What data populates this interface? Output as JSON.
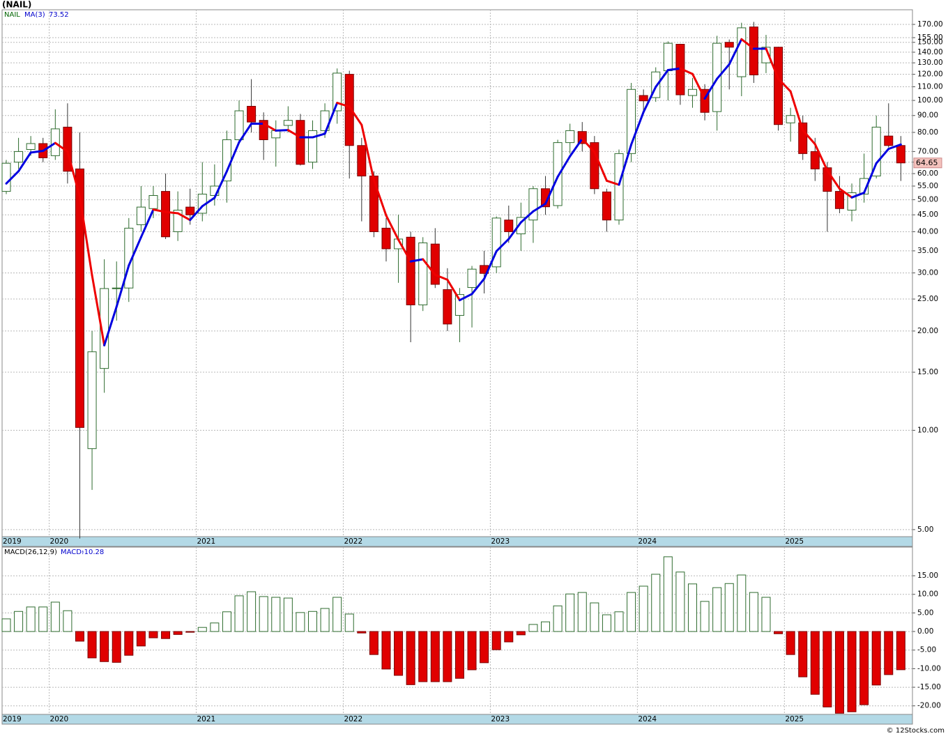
{
  "chart_data": [
    {
      "type": "candlestick",
      "title": "(NAIL)",
      "name": "NAIL",
      "log_scale": true,
      "grid": true,
      "up_color": "#2e6b2e",
      "down_color": "#e00000",
      "categories": [
        "2019",
        null,
        null,
        null,
        "2020",
        null,
        null,
        null,
        null,
        null,
        null,
        null,
        null,
        null,
        null,
        null,
        "2021",
        null,
        null,
        null,
        null,
        null,
        null,
        null,
        null,
        null,
        null,
        null,
        "2022",
        null,
        null,
        null,
        null,
        null,
        null,
        null,
        null,
        null,
        null,
        null,
        "2023",
        null,
        null,
        null,
        null,
        null,
        null,
        null,
        null,
        null,
        null,
        null,
        "2024",
        null,
        null,
        null,
        null,
        null,
        null,
        null,
        null,
        null,
        null,
        null,
        "2025",
        null,
        null,
        null,
        null,
        null,
        null,
        null,
        null,
        null
      ],
      "open": [
        53,
        65,
        71,
        74,
        68,
        83,
        62,
        8.8,
        15.4,
        27,
        27,
        42,
        47,
        53,
        40,
        47.5,
        45.5,
        51.5,
        57,
        76,
        96,
        87,
        77,
        84,
        87,
        65,
        81,
        93,
        120,
        73,
        59,
        41,
        35.5,
        38.5,
        24,
        36.7,
        26.7,
        22.3,
        27.1,
        31.6,
        31.3,
        43.4,
        39.4,
        43.4,
        54,
        48,
        74.5,
        80.5,
        74.5,
        52.8,
        43.4,
        69,
        103.5,
        102,
        123,
        148,
        103.5,
        108,
        92.5,
        150,
        118,
        167,
        130,
        145,
        85.5,
        85.5,
        70,
        62.5,
        53,
        46.5,
        52,
        59,
        78,
        73
      ],
      "high": [
        66,
        77,
        78,
        77,
        94,
        98,
        80,
        20,
        33,
        32.5,
        44,
        55,
        55,
        60,
        53,
        54,
        65,
        64,
        81,
        100,
        116,
        92,
        87,
        96,
        91,
        87,
        98,
        125,
        123,
        77,
        61,
        44,
        45,
        40,
        38.5,
        41,
        31,
        27,
        31.5,
        35,
        44.5,
        48,
        49,
        55,
        59,
        76,
        85,
        86,
        78,
        54,
        71,
        113,
        108,
        126,
        151,
        148.5,
        117,
        112,
        157,
        153,
        172,
        173,
        158,
        145.5,
        95,
        90,
        77,
        65,
        59,
        56,
        69,
        90,
        98,
        78
      ],
      "low": [
        52,
        62,
        68,
        65,
        66,
        56,
        4.7,
        6.6,
        13,
        21.5,
        24.5,
        40,
        44,
        38,
        37.5,
        42,
        43,
        48,
        49,
        75,
        80,
        66,
        63,
        80,
        63.5,
        62,
        77,
        85,
        58,
        43,
        38.5,
        32.5,
        28,
        18.5,
        23,
        27,
        20,
        18.5,
        20.5,
        26,
        30,
        37,
        35,
        37,
        45,
        47,
        69,
        70,
        52,
        40,
        42,
        65,
        91,
        99,
        100,
        97,
        95,
        87,
        81,
        108,
        103,
        113,
        121,
        81,
        75,
        66,
        57,
        40,
        45.5,
        43,
        49,
        58,
        72,
        57
      ],
      "close": [
        64.5,
        70,
        74,
        67,
        82,
        61,
        10.2,
        17.3,
        26.9,
        27,
        41,
        47.5,
        51.5,
        38.6,
        46.5,
        45,
        52,
        55,
        76,
        93,
        86,
        76,
        81,
        87,
        64,
        81,
        93,
        121,
        73,
        59,
        40,
        35.5,
        38,
        24,
        37,
        27.7,
        21,
        25.8,
        30.8,
        29.9,
        44,
        40,
        44.2,
        54,
        47.6,
        74.5,
        81,
        74,
        54,
        43.4,
        69,
        108,
        99.7,
        122,
        149,
        104,
        108,
        92,
        149,
        145,
        166,
        119.5,
        145,
        84.5,
        90,
        69,
        62,
        53,
        47,
        52.5,
        58,
        83,
        73,
        64.65
      ],
      "ma": {
        "name": "MA(3)",
        "up_color": "#0000e0",
        "down_color": "#ee0000",
        "values": [
          56,
          61,
          69.5,
          70.3,
          74.3,
          70,
          51.1,
          29.5,
          18.1,
          23.7,
          31.6,
          38.5,
          46.7,
          45.9,
          45.5,
          43.4,
          47.8,
          50.7,
          61,
          74.7,
          85,
          85,
          81,
          81.3,
          77.3,
          77.3,
          79.3,
          98.3,
          95.7,
          84.3,
          57.3,
          44.8,
          37.8,
          32.5,
          33,
          29.6,
          28.6,
          24.8,
          25.9,
          28.8,
          34.9,
          38,
          42.7,
          46.1,
          48.6,
          58.7,
          67.7,
          76.5,
          69.7,
          57.1,
          55.5,
          73.5,
          92.2,
          109.9,
          123.6,
          125,
          120.3,
          101.3,
          116.3,
          128.7,
          153.3,
          143.5,
          143.5,
          116.3,
          106.5,
          81.2,
          73.7,
          61.3,
          54,
          50.8,
          52.5,
          64.5,
          71.3,
          73.52
        ]
      },
      "ylim": [
        4.76,
        188.3
      ],
      "yticks": [
        {
          "value": 170,
          "label": "170.00"
        },
        {
          "value": 155,
          "label": "155.00"
        },
        {
          "value": 150,
          "label": "150.00"
        },
        {
          "value": 140,
          "label": "140.00"
        },
        {
          "value": 130,
          "label": "130.00"
        },
        {
          "value": 120,
          "label": "120.00"
        },
        {
          "value": 110,
          "label": "110.00"
        },
        {
          "value": 100,
          "label": "100.00"
        },
        {
          "value": 90,
          "label": "90.00"
        },
        {
          "value": 80,
          "label": "80.00"
        },
        {
          "value": 70,
          "label": "70.00"
        },
        {
          "value": 65,
          "label": "65.00"
        },
        {
          "value": 60,
          "label": "60.00"
        },
        {
          "value": 55,
          "label": "55.00"
        },
        {
          "value": 50,
          "label": "50.00"
        },
        {
          "value": 45,
          "label": "45.00"
        },
        {
          "value": 40,
          "label": "40.00"
        },
        {
          "value": 35,
          "label": "35.00"
        },
        {
          "value": 30,
          "label": "30.00"
        },
        {
          "value": 25,
          "label": "25.00"
        },
        {
          "value": 20,
          "label": "20.00"
        },
        {
          "value": 15,
          "label": "15.00"
        },
        {
          "value": 10,
          "label": "10.00"
        },
        {
          "value": 5,
          "label": "5.00"
        }
      ]
    },
    {
      "type": "bar",
      "name": "MACD(26,12,9)",
      "value_name": "MACD:",
      "grid": true,
      "up_color": "#2e6b2e",
      "down_color": "#e00000",
      "values": [
        3.4,
        5.4,
        6.6,
        6.6,
        7.9,
        5.6,
        -2.6,
        -7.1,
        -8.1,
        -8.3,
        -6.4,
        -3.9,
        -1.7,
        -1.9,
        -0.8,
        -0.2,
        1.1,
        2.3,
        5.3,
        9.6,
        10.7,
        9.4,
        9.2,
        9.0,
        5.1,
        5.4,
        6.2,
        9.2,
        4.7,
        -0.4,
        -6.2,
        -10.1,
        -11.8,
        -14.3,
        -13.5,
        -13.5,
        -13.5,
        -12.6,
        -10.3,
        -8.4,
        -4.9,
        -2.8,
        -0.9,
        1.9,
        2.6,
        6.9,
        10.1,
        10.5,
        7.7,
        4.5,
        5.3,
        10.5,
        12.2,
        15.4,
        20.1,
        16.0,
        12.8,
        8.1,
        11.8,
        12.9,
        15.2,
        10.5,
        9.2,
        -0.6,
        -6.2,
        -12.2,
        -16.9,
        -20.3,
        -22.0,
        -21.6,
        -19.7,
        -14.4,
        -11.6,
        -10.28
      ],
      "ylim": [
        -22.3,
        22.7
      ],
      "yticks": [
        {
          "value": 15,
          "label": "15.00"
        },
        {
          "value": 10,
          "label": "10.00"
        },
        {
          "value": 5,
          "label": "5.00"
        },
        {
          "value": 0,
          "label": "0.00"
        },
        {
          "value": -5,
          "label": "-5.00"
        },
        {
          "value": -10,
          "label": "-10.00"
        },
        {
          "value": -15,
          "label": "-15.00"
        },
        {
          "value": -20,
          "label": "-20.00"
        }
      ]
    }
  ],
  "footer": "© 12Stocks.com"
}
